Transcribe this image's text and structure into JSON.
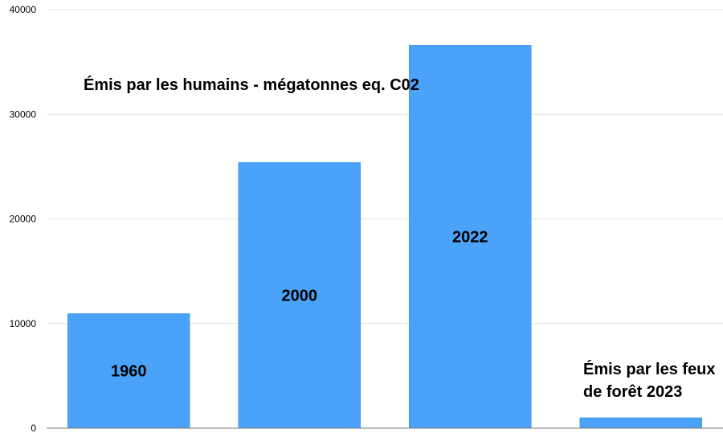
{
  "chart_data": {
    "type": "bar",
    "categories": [
      "1960",
      "2000",
      "2022",
      ""
    ],
    "values": [
      10950,
      25400,
      36600,
      1000
    ],
    "bar_labels": [
      "1960",
      "2000",
      "2022",
      ""
    ],
    "ylim": [
      0,
      40000
    ],
    "yticks": [
      0,
      10000,
      20000,
      30000,
      40000
    ],
    "grid": true,
    "legend": "none",
    "bar_color": "#4aa3f8",
    "annotations": [
      "Émis par les humains - mégatonnes eq. C02",
      "Émis par les feux de forêt 2023"
    ]
  },
  "annotation_fires_lines": [
    "Émis par les feux",
    "de forêt 2023"
  ]
}
